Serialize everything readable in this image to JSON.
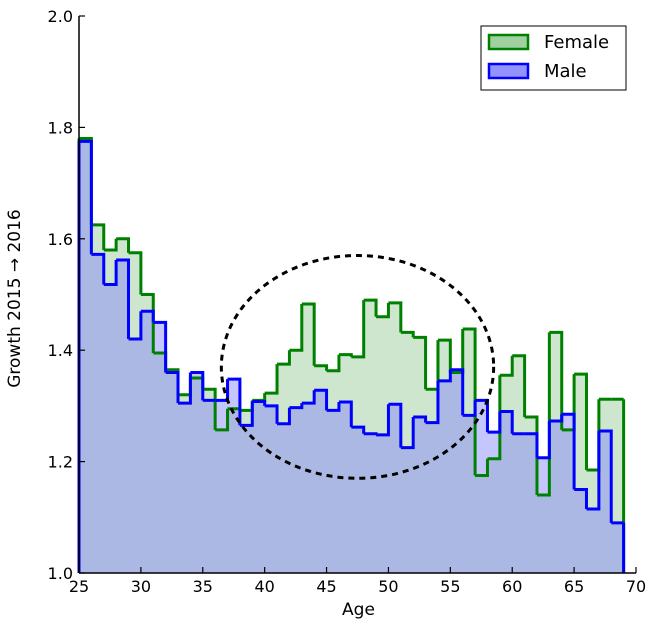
{
  "chart_data": {
    "type": "area",
    "step": true,
    "xlabel": "Age",
    "ylabel": "Growth 2015 → 2016",
    "xlim": [
      25,
      70
    ],
    "ylim": [
      1.0,
      2.0
    ],
    "xticks": [
      "25",
      "30",
      "35",
      "40",
      "45",
      "50",
      "55",
      "60",
      "65",
      "70"
    ],
    "yticks": [
      "1.0",
      "1.2",
      "1.4",
      "1.6",
      "1.8",
      "2.0"
    ],
    "grid": false,
    "legend_position": "top-right",
    "series": [
      {
        "name": "Female",
        "color": "#008000",
        "fill": "#90c890",
        "x": [
          25,
          26,
          27,
          28,
          29,
          30,
          31,
          32,
          33,
          34,
          35,
          36,
          37,
          38,
          39,
          40,
          41,
          42,
          43,
          44,
          45,
          46,
          47,
          48,
          49,
          50,
          51,
          52,
          53,
          54,
          55,
          56,
          57,
          58,
          59,
          60,
          61,
          62,
          63,
          64,
          65,
          66,
          67,
          68
        ],
        "values": [
          1.78,
          1.625,
          1.58,
          1.6,
          1.575,
          1.5,
          1.395,
          1.365,
          1.32,
          1.35,
          1.33,
          1.257,
          1.295,
          1.292,
          1.31,
          1.323,
          1.375,
          1.4,
          1.483,
          1.372,
          1.363,
          1.392,
          1.388,
          1.49,
          1.46,
          1.485,
          1.432,
          1.423,
          1.33,
          1.418,
          1.36,
          1.438,
          1.175,
          1.205,
          1.355,
          1.39,
          1.28,
          1.14,
          1.432,
          1.257,
          1.357,
          1.185,
          1.312,
          1.312
        ]
      },
      {
        "name": "Male",
        "color": "#0000ff",
        "fill": "#8080ff",
        "x": [
          25,
          26,
          27,
          28,
          29,
          30,
          31,
          32,
          33,
          34,
          35,
          36,
          37,
          38,
          39,
          40,
          41,
          42,
          43,
          44,
          45,
          46,
          47,
          48,
          49,
          50,
          51,
          52,
          53,
          54,
          55,
          56,
          57,
          58,
          59,
          60,
          61,
          62,
          63,
          64,
          65,
          66,
          67,
          68
        ],
        "values": [
          1.775,
          1.572,
          1.518,
          1.562,
          1.42,
          1.47,
          1.45,
          1.36,
          1.305,
          1.36,
          1.31,
          1.31,
          1.348,
          1.265,
          1.308,
          1.3,
          1.268,
          1.297,
          1.305,
          1.328,
          1.292,
          1.307,
          1.262,
          1.25,
          1.248,
          1.303,
          1.225,
          1.28,
          1.27,
          1.345,
          1.365,
          1.283,
          1.31,
          1.253,
          1.29,
          1.25,
          1.25,
          1.207,
          1.273,
          1.285,
          1.15,
          1.115,
          1.255,
          1.09
        ]
      }
    ],
    "annotations": [
      {
        "type": "dashed-ellipse",
        "center": [
          47.5,
          1.37
        ],
        "radius_x": 11,
        "radius_y": 0.2
      }
    ]
  }
}
